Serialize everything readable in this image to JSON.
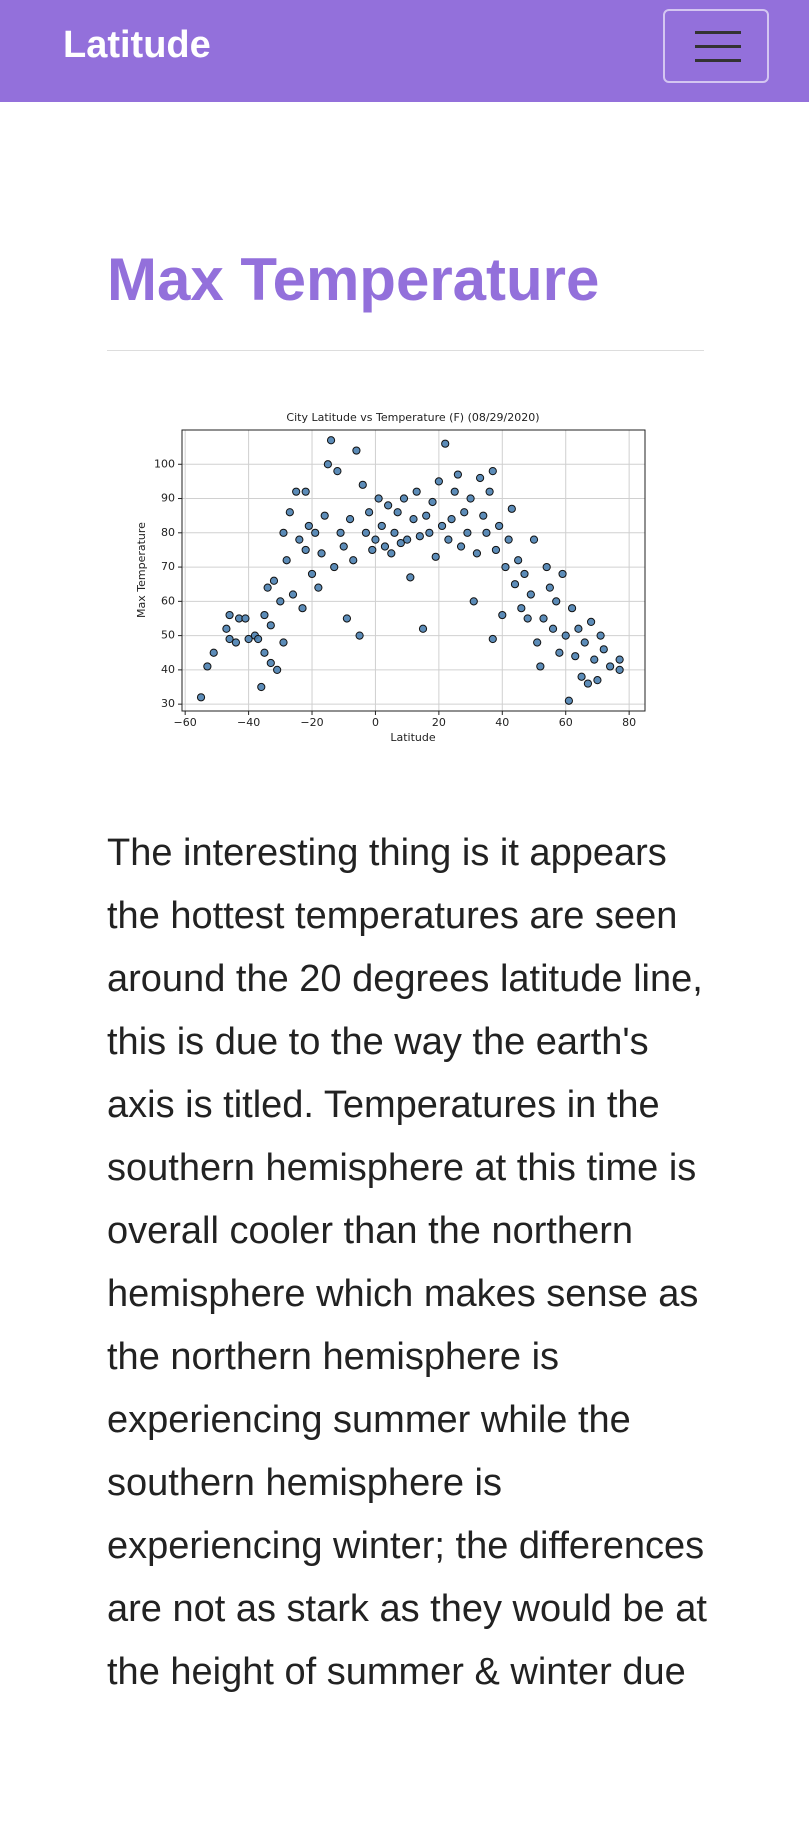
{
  "navbar": {
    "brand": "Latitude"
  },
  "heading": "Max Temperature",
  "paragraph": "The interesting thing is it appears the hottest temperatures are seen around the 20 degrees latitude line, this is due to the way the earth's axis is titled. Temperatures in the southern hemisphere at this time is overall cooler than the northern hemisphere which makes sense as the northern hemisphere is experiencing summer while the southern hemisphere is experiencing winter; the differences are not as stark as they would be at the height of summer & winter due",
  "chart_data": {
    "type": "scatter",
    "title": "City Latitude vs Temperature (F) (08/29/2020)",
    "x_label": "Latitude",
    "y_label": "Max Temperature",
    "color": "#4a7fb0",
    "grid": true,
    "xlim": [
      -61,
      85
    ],
    "ylim": [
      28,
      110
    ],
    "xticks": [
      {
        "value": -60,
        "label": "−60"
      },
      {
        "value": -40,
        "label": "−40"
      },
      {
        "value": -20,
        "label": "−20"
      },
      0,
      20,
      40,
      60,
      80
    ],
    "yticks": [
      30,
      40,
      50,
      60,
      70,
      80,
      90,
      100
    ],
    "x": [
      -55,
      -53,
      -51,
      -47,
      -46,
      -46,
      -44,
      -43,
      -41,
      -40,
      -38,
      -37,
      -36,
      -35,
      -35,
      -34,
      -33,
      -33,
      -32,
      -31,
      -30,
      -29,
      -29,
      -28,
      -27,
      -26,
      -25,
      -24,
      -23,
      -22,
      -22,
      -21,
      -20,
      -19,
      -18,
      -17,
      -16,
      -15,
      -14,
      -13,
      -12,
      -11,
      -10,
      -9,
      -8,
      -7,
      -6,
      -5,
      -4,
      -3,
      -2,
      -1,
      0,
      1,
      2,
      3,
      4,
      5,
      6,
      7,
      8,
      9,
      10,
      11,
      12,
      13,
      14,
      15,
      16,
      17,
      18,
      19,
      20,
      21,
      22,
      23,
      24,
      25,
      26,
      27,
      28,
      29,
      30,
      31,
      32,
      33,
      34,
      35,
      36,
      37,
      37,
      38,
      39,
      40,
      41,
      42,
      43,
      44,
      45,
      46,
      47,
      48,
      49,
      50,
      51,
      52,
      53,
      54,
      55,
      56,
      57,
      58,
      59,
      60,
      61,
      62,
      63,
      64,
      65,
      66,
      67,
      68,
      69,
      70,
      71,
      72,
      74,
      77,
      77
    ],
    "values": [
      32,
      41,
      45,
      52,
      56,
      49,
      48,
      55,
      55,
      49,
      50,
      49,
      35,
      45,
      56,
      64,
      42,
      53,
      66,
      40,
      60,
      48,
      80,
      72,
      86,
      62,
      92,
      78,
      58,
      92,
      75,
      82,
      68,
      80,
      64,
      74,
      85,
      100,
      107,
      70,
      98,
      80,
      76,
      55,
      84,
      72,
      104,
      50,
      94,
      80,
      86,
      75,
      78,
      90,
      82,
      76,
      88,
      74,
      80,
      86,
      77,
      90,
      78,
      67,
      84,
      92,
      79,
      52,
      85,
      80,
      89,
      73,
      95,
      82,
      106,
      78,
      84,
      92,
      97,
      76,
      86,
      80,
      90,
      60,
      74,
      96,
      85,
      80,
      92,
      98,
      49,
      75,
      82,
      56,
      70,
      78,
      87,
      65,
      72,
      58,
      68,
      55,
      62,
      78,
      48,
      41,
      55,
      70,
      64,
      52,
      60,
      45,
      68,
      50,
      31,
      58,
      44,
      52,
      38,
      48,
      36,
      54,
      43,
      37,
      50,
      46,
      41,
      43,
      40
    ]
  }
}
